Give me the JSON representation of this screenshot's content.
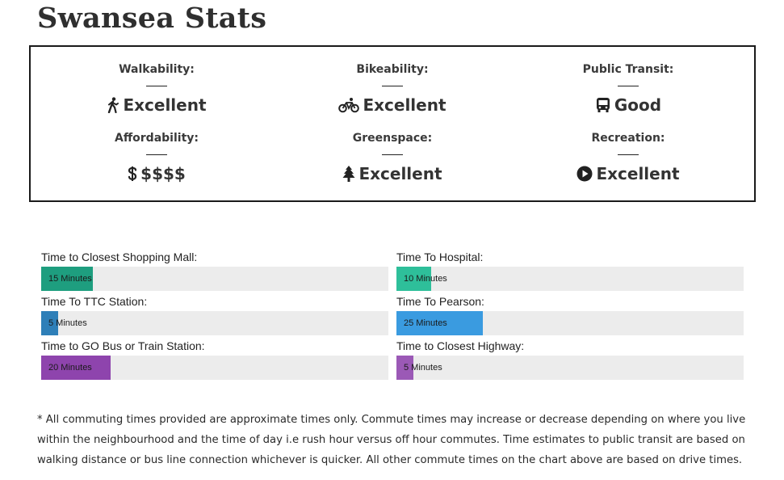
{
  "page_title": "Swansea Stats",
  "stats": [
    {
      "label": "Walkability:",
      "value": "Excellent",
      "icon": "walking-icon"
    },
    {
      "label": "Bikeability:",
      "value": "Excellent",
      "icon": "bicycle-icon"
    },
    {
      "label": "Public Transit:",
      "value": "Good",
      "icon": "bus-icon"
    },
    {
      "label": "Affordability:",
      "value": "$$$$",
      "icon": "dollar-icon"
    },
    {
      "label": "Greenspace:",
      "value": "Excellent",
      "icon": "tree-icon"
    },
    {
      "label": "Recreation:",
      "value": "Excellent",
      "icon": "play-icon"
    }
  ],
  "commute": [
    {
      "label": "Time to Closest Shopping Mall:",
      "text": "15 Minutes",
      "fill_fraction": 0.149,
      "color": "#1e9e7f"
    },
    {
      "label": "Time To Hospital:",
      "text": "10 Minutes",
      "fill_fraction": 0.1,
      "color": "#2ebf9a"
    },
    {
      "label": "Time To TTC Station:",
      "text": "5 Minutes",
      "fill_fraction": 0.049,
      "color": "#2e7fb8"
    },
    {
      "label": "Time To Pearson:",
      "text": "25 Minutes",
      "fill_fraction": 0.249,
      "color": "#3a9be0"
    },
    {
      "label": "Time to GO Bus or Train Station:",
      "text": "20 Minutes",
      "fill_fraction": 0.2,
      "color": "#8e44ad"
    },
    {
      "label": "Time to Closest Highway:",
      "text": "5 Minutes",
      "fill_fraction": 0.049,
      "color": "#9b59b6"
    }
  ],
  "footnote": "* All commuting times provided are approximate times only. Commute times may increase or decrease depending on where you live within the neighbourhood and the time of day i.e rush hour versus off hour commutes. Time estimates to public transit are based on walking distance or bus line connection whichever is quicker. All other commute times on the chart above are based on drive times."
}
